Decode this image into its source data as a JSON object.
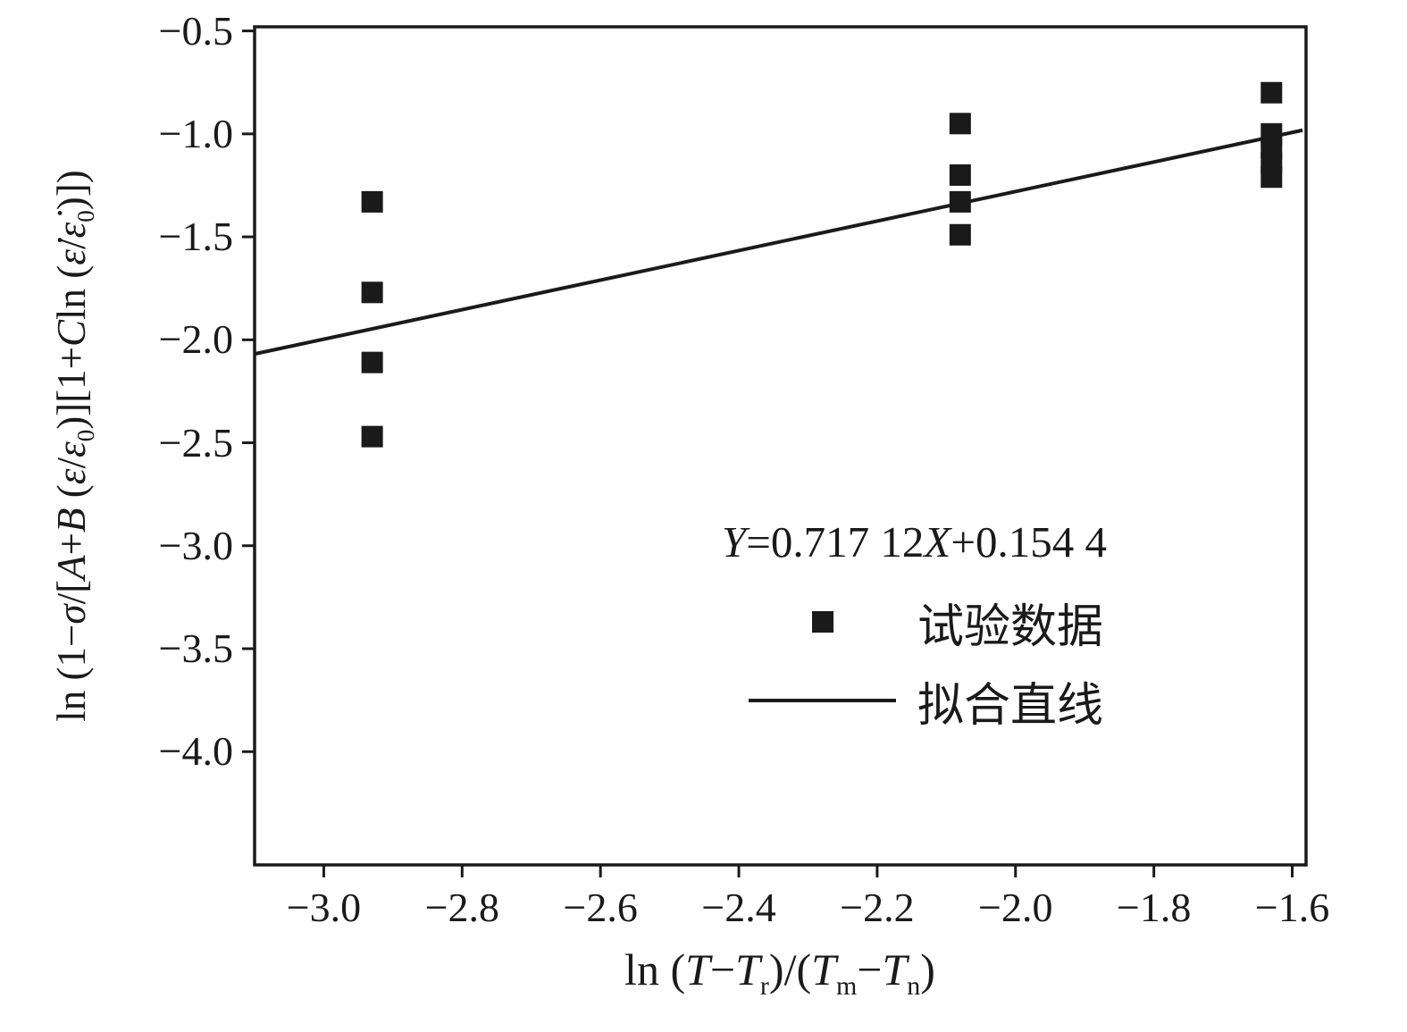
{
  "figure": {
    "background": "#ffffff",
    "ink": "#1a1a1a"
  },
  "chart_data": {
    "type": "scatter",
    "title": "",
    "xlabel_plain": "ln (T−Tr)/(Tm−Tn)",
    "ylabel_plain": "ln (1−σ/[A+B (ε/ε0)][1+Cln (ε̇/ε̇0)])",
    "xlabel_rich": [
      {
        "t": "ln ("
      },
      {
        "t": "T",
        "i": true
      },
      {
        "t": "−"
      },
      {
        "t": "T",
        "i": true
      },
      {
        "t": "r",
        "s": "sub"
      },
      {
        "t": ")/("
      },
      {
        "t": "T",
        "i": true
      },
      {
        "t": "m",
        "s": "sub"
      },
      {
        "t": "−"
      },
      {
        "t": "T",
        "i": true
      },
      {
        "t": "n",
        "s": "sub"
      },
      {
        "t": ")"
      }
    ],
    "ylabel_rich": [
      {
        "t": "ln (1−"
      },
      {
        "t": "σ",
        "i": true
      },
      {
        "t": "/["
      },
      {
        "t": "A",
        "i": true
      },
      {
        "t": "+"
      },
      {
        "t": "B",
        "i": true
      },
      {
        "t": " ("
      },
      {
        "t": "ε",
        "i": true
      },
      {
        "t": "/"
      },
      {
        "t": "ε",
        "i": true
      },
      {
        "t": "0",
        "s": "sub"
      },
      {
        "t": ")][1+"
      },
      {
        "t": "C",
        "i": true
      },
      {
        "t": "ln ("
      },
      {
        "t": "ε̇",
        "i": true
      },
      {
        "t": "/"
      },
      {
        "t": "ε̇",
        "i": true
      },
      {
        "t": "0",
        "s": "sub"
      },
      {
        "t": ")])"
      }
    ],
    "xlim": [
      -3.1,
      -1.58
    ],
    "ylim": [
      -4.55,
      -0.48
    ],
    "xticks": [
      -3.0,
      -2.8,
      -2.6,
      -2.4,
      -2.2,
      -2.0,
      -1.8,
      -1.6
    ],
    "xtick_labels": [
      "−3.0",
      "−2.8",
      "−2.6",
      "−2.4",
      "−2.2",
      "−2.0",
      "−1.8",
      "−1.6"
    ],
    "yticks": [
      -0.5,
      -1.0,
      -1.5,
      -2.0,
      -2.5,
      -3.0,
      -3.5,
      -4.0
    ],
    "ytick_labels": [
      "−0.5",
      "−1.0",
      "−1.5",
      "−2.0",
      "−2.5",
      "−3.0",
      "−3.5",
      "−4.0"
    ],
    "grid": false,
    "ink": "#1a1a1a",
    "legend_position": "center-right",
    "annotation": {
      "text": "Y=0.717 12X+0.154 4",
      "rich": [
        {
          "t": "Y",
          "i": true
        },
        {
          "t": "=0.717 12"
        },
        {
          "t": "X",
          "i": true
        },
        {
          "t": "+0.154 4"
        }
      ]
    },
    "series": [
      {
        "name": "试验数据",
        "type": "scatter",
        "marker": "square",
        "color": "#1a1a1a",
        "points": [
          [
            -2.93,
            -1.33
          ],
          [
            -2.93,
            -1.77
          ],
          [
            -2.93,
            -2.11
          ],
          [
            -2.93,
            -2.47
          ],
          [
            -2.08,
            -0.95
          ],
          [
            -2.08,
            -1.2
          ],
          [
            -2.08,
            -1.33
          ],
          [
            -2.08,
            -1.49
          ],
          [
            -1.63,
            -0.8
          ],
          [
            -1.63,
            -1.0
          ],
          [
            -1.63,
            -1.07
          ],
          [
            -1.63,
            -1.14
          ],
          [
            -1.63,
            -1.21
          ]
        ]
      },
      {
        "name": "拟合直线",
        "type": "line",
        "color": "#1a1a1a",
        "slope": 0.71712,
        "intercept": 0.1544,
        "x_start": -3.1,
        "x_end": -1.585
      }
    ]
  }
}
